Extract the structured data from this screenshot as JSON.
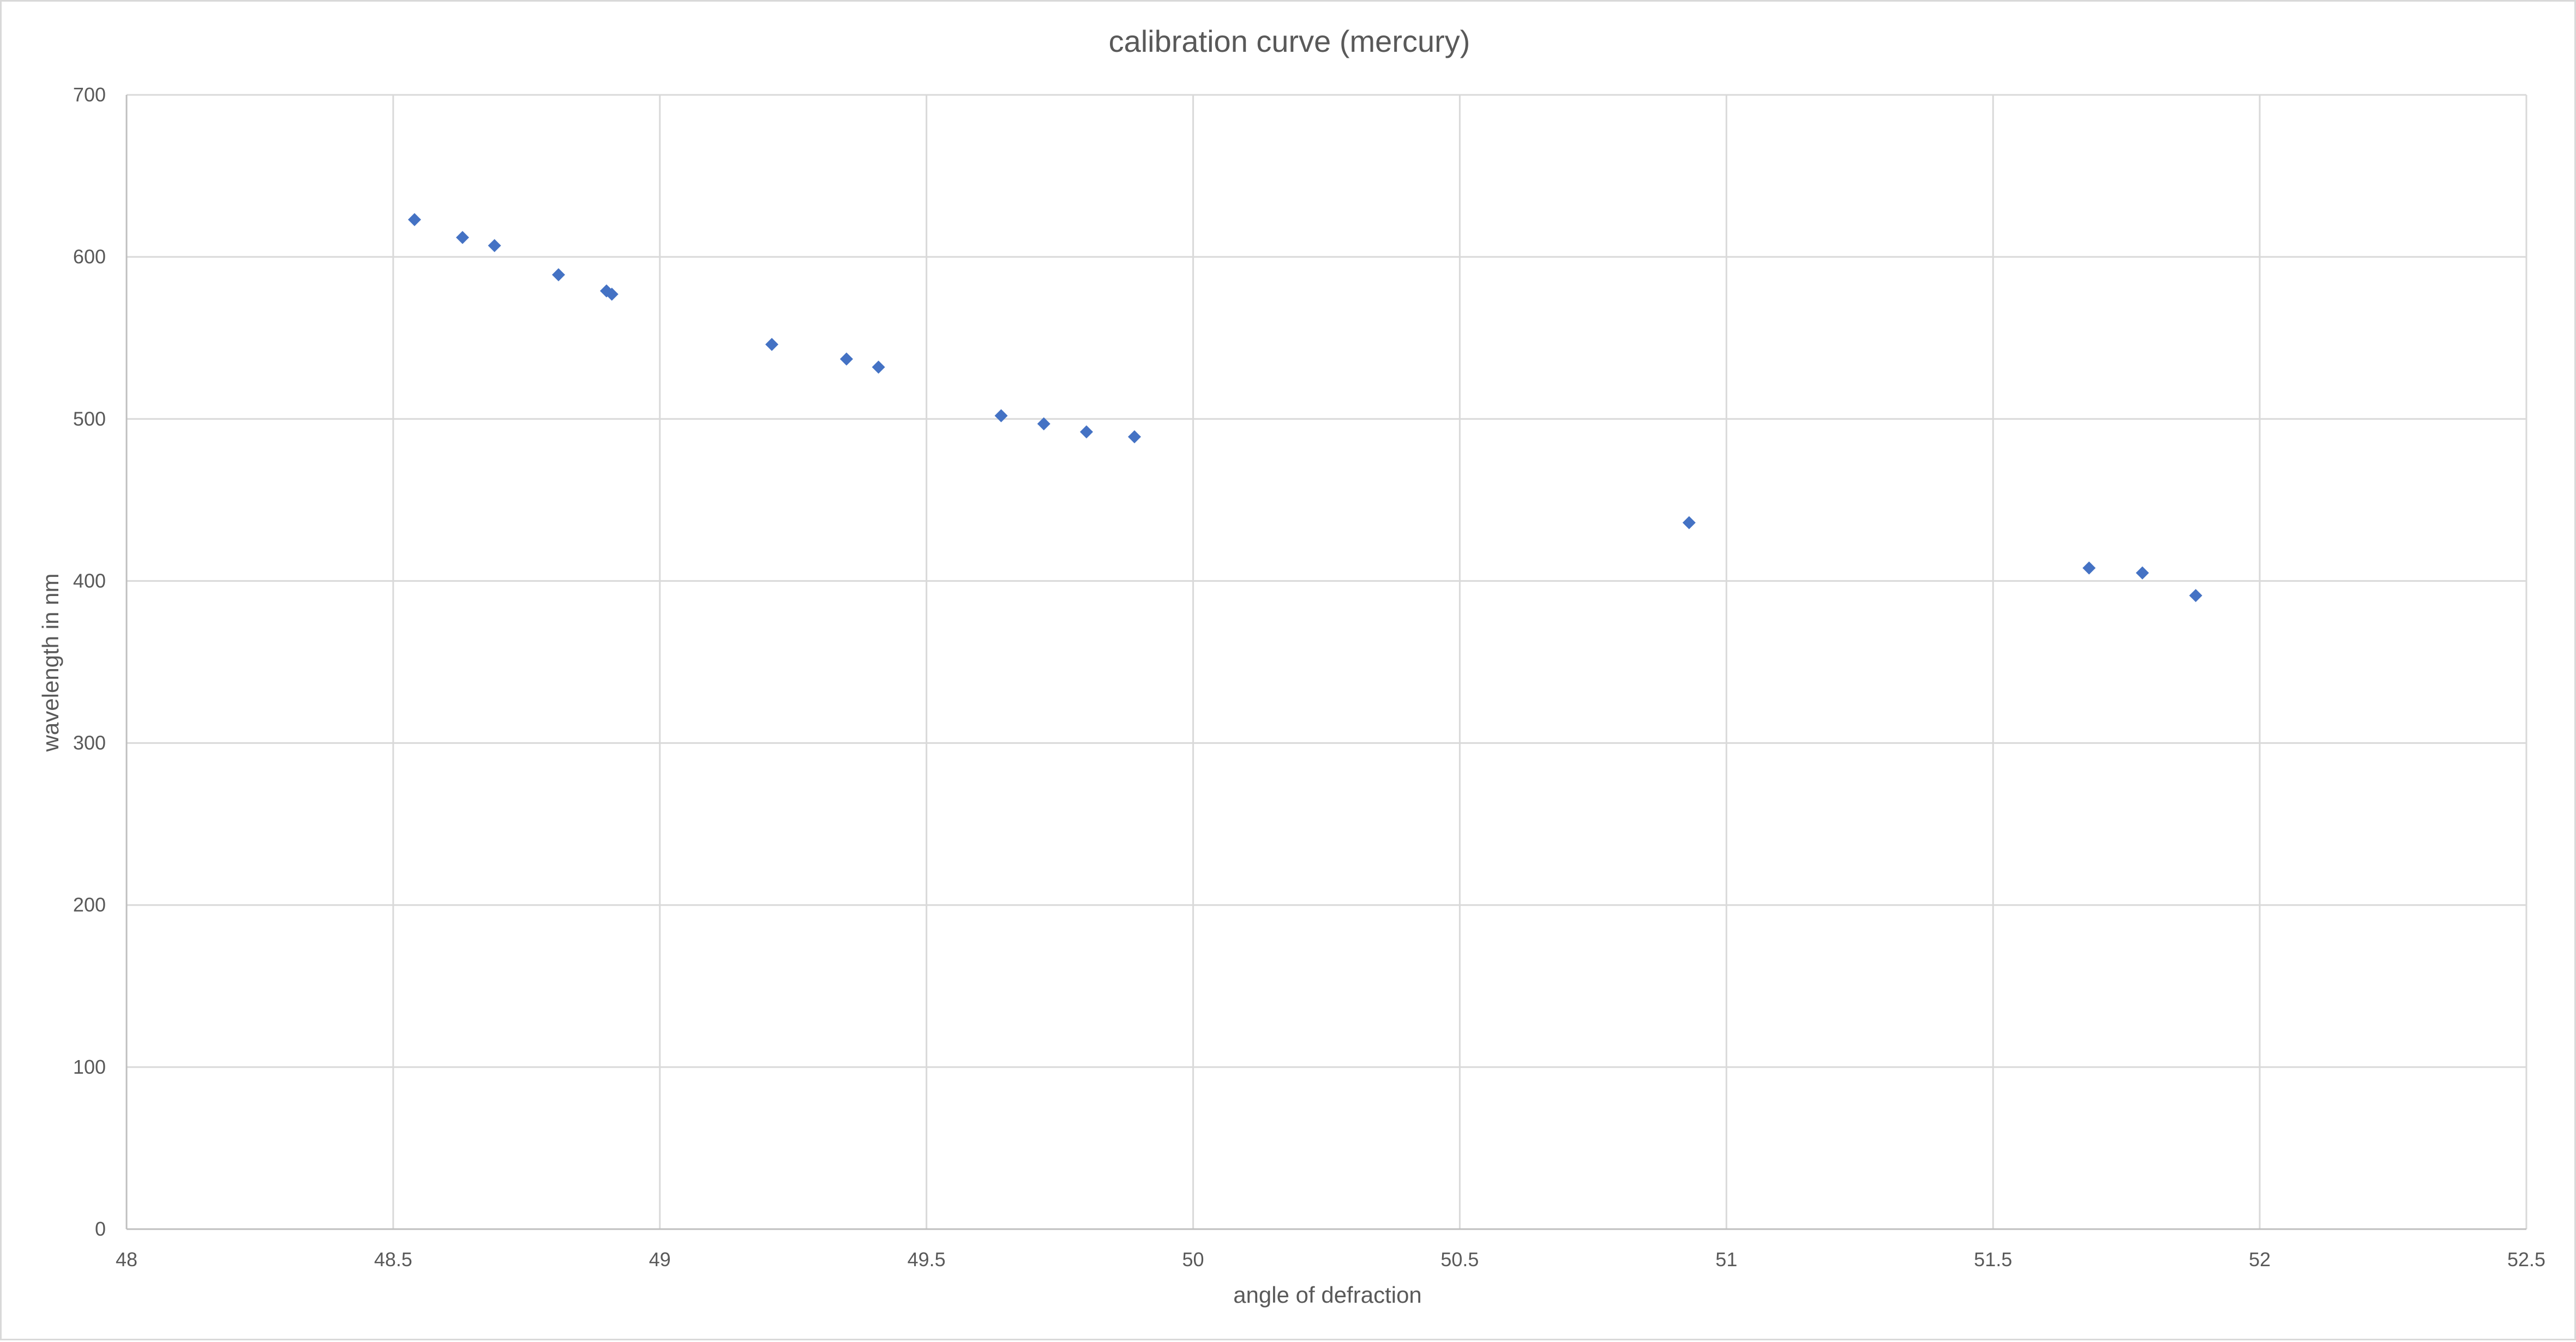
{
  "chart_data": {
    "type": "scatter",
    "title": "calibration curve (mercury)",
    "xlabel": "angle of defraction",
    "ylabel": "wavelength in nm",
    "xlim": [
      48,
      52.5
    ],
    "ylim": [
      0,
      700
    ],
    "x_ticks": [
      "48",
      "48.5",
      "49",
      "49.5",
      "50",
      "50.5",
      "51",
      "51.5",
      "52",
      "52.5"
    ],
    "y_ticks": [
      "0",
      "100",
      "200",
      "300",
      "400",
      "500",
      "600",
      "700"
    ],
    "grid": true,
    "legend": "none",
    "marker": "diamond",
    "series": [
      {
        "color": "#4472c4",
        "points": [
          {
            "x": 48.54,
            "y": 623
          },
          {
            "x": 48.63,
            "y": 612
          },
          {
            "x": 48.69,
            "y": 607
          },
          {
            "x": 48.81,
            "y": 589
          },
          {
            "x": 48.9,
            "y": 579
          },
          {
            "x": 48.91,
            "y": 577
          },
          {
            "x": 49.21,
            "y": 546
          },
          {
            "x": 49.35,
            "y": 537
          },
          {
            "x": 49.41,
            "y": 532
          },
          {
            "x": 49.64,
            "y": 502
          },
          {
            "x": 49.72,
            "y": 497
          },
          {
            "x": 49.8,
            "y": 492
          },
          {
            "x": 49.89,
            "y": 489
          },
          {
            "x": 50.93,
            "y": 436
          },
          {
            "x": 51.68,
            "y": 408
          },
          {
            "x": 51.78,
            "y": 405
          },
          {
            "x": 51.88,
            "y": 391
          }
        ]
      }
    ]
  }
}
